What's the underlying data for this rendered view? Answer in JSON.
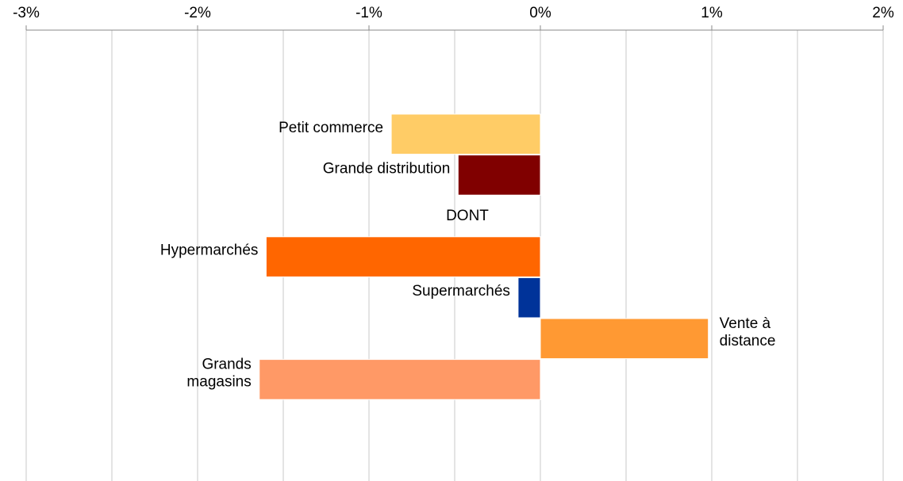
{
  "chart_data": {
    "type": "hbar",
    "categories": [
      "Petit commerce",
      "Grande distribution",
      "DONT",
      "Hypermarchés",
      "Supermarchés",
      "Vente à\ndistance",
      "Grands\nmagasins"
    ],
    "values": [
      -0.87,
      -0.48,
      null,
      -1.6,
      -0.13,
      0.98,
      -1.64
    ],
    "colors": [
      "#ffcc66",
      "#800000",
      null,
      "#ff6600",
      "#003399",
      "#ff9933",
      "#ff9966"
    ],
    "xlim": [
      -3,
      2
    ],
    "xticks": [
      {
        "value": -3,
        "label": "-3%"
      },
      {
        "value": -2,
        "label": "-2%"
      },
      {
        "value": -1,
        "label": "-1%"
      },
      {
        "value": 0,
        "label": "0%"
      },
      {
        "value": 1,
        "label": "1%"
      },
      {
        "value": 2,
        "label": "2%"
      }
    ],
    "xminorticks": [
      -2.5,
      -1.5,
      -0.5,
      0.5,
      1.5
    ],
    "grid": true
  }
}
